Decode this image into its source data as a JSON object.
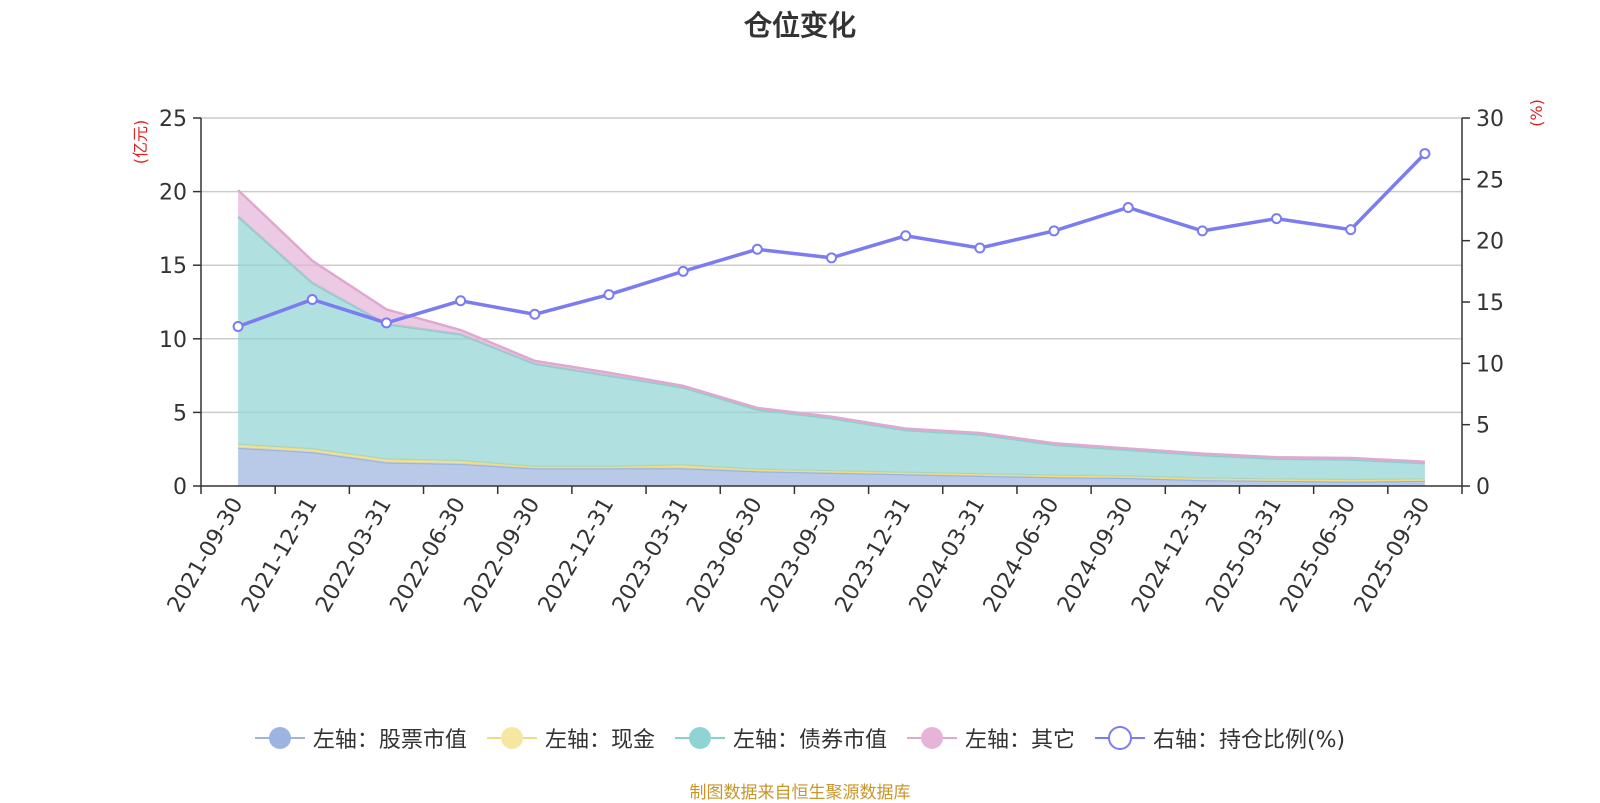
{
  "chart_data": {
    "type": "area",
    "title": "仓位变化",
    "categories": [
      "2021-09-30",
      "2021-12-31",
      "2022-03-31",
      "2022-06-30",
      "2022-09-30",
      "2022-12-31",
      "2023-03-31",
      "2023-06-30",
      "2023-09-30",
      "2023-12-31",
      "2024-03-31",
      "2024-06-30",
      "2024-09-30",
      "2024-12-31",
      "2025-03-31",
      "2025-06-30",
      "2025-09-30"
    ],
    "left_axis": {
      "label": "(亿元)",
      "ylim": [
        0,
        25
      ],
      "ticks": [
        "0",
        "5",
        "10",
        "15",
        "20",
        "25"
      ]
    },
    "right_axis": {
      "label": "(%)",
      "ylim": [
        0,
        30
      ],
      "ticks": [
        "0",
        "5",
        "10",
        "15",
        "20",
        "25",
        "30"
      ]
    },
    "series": [
      {
        "name": "左轴：股票市值",
        "axis": "left",
        "type": "stacked-area",
        "color": "#9bb4e0",
        "values": [
          2.6,
          2.3,
          1.6,
          1.5,
          1.2,
          1.2,
          1.2,
          1.0,
          0.9,
          0.8,
          0.7,
          0.6,
          0.55,
          0.4,
          0.35,
          0.3,
          0.35
        ]
      },
      {
        "name": "左轴：现金",
        "axis": "left",
        "type": "stacked-area",
        "color": "#f5e6a2",
        "values": [
          0.2,
          0.2,
          0.2,
          0.2,
          0.1,
          0.1,
          0.2,
          0.1,
          0.1,
          0.1,
          0.1,
          0.1,
          0.1,
          0.1,
          0.1,
          0.1,
          0.1
        ]
      },
      {
        "name": "左轴：债券市值",
        "axis": "left",
        "type": "stacked-area",
        "color": "#8fd3d3",
        "values": [
          15.5,
          11.3,
          9.2,
          8.6,
          7.0,
          6.2,
          5.3,
          4.1,
          3.6,
          2.9,
          2.7,
          2.1,
          1.8,
          1.6,
          1.4,
          1.4,
          1.1
        ]
      },
      {
        "name": "左轴：其它",
        "axis": "left",
        "type": "stacked-area",
        "color": "#e6b4d8",
        "values": [
          1.8,
          1.5,
          1.0,
          0.3,
          0.2,
          0.2,
          0.1,
          0.1,
          0.1,
          0.1,
          0.1,
          0.1,
          0.1,
          0.1,
          0.1,
          0.1,
          0.1
        ]
      },
      {
        "name": "右轴：持仓比例(%)",
        "axis": "right",
        "type": "line",
        "color": "#7b7cf0",
        "values": [
          13.0,
          15.2,
          13.3,
          15.1,
          14.0,
          15.6,
          17.5,
          19.3,
          18.6,
          20.4,
          19.4,
          20.8,
          22.7,
          20.8,
          21.8,
          20.9,
          27.1
        ]
      }
    ]
  },
  "source_note": "制图数据来自恒生聚源数据库"
}
